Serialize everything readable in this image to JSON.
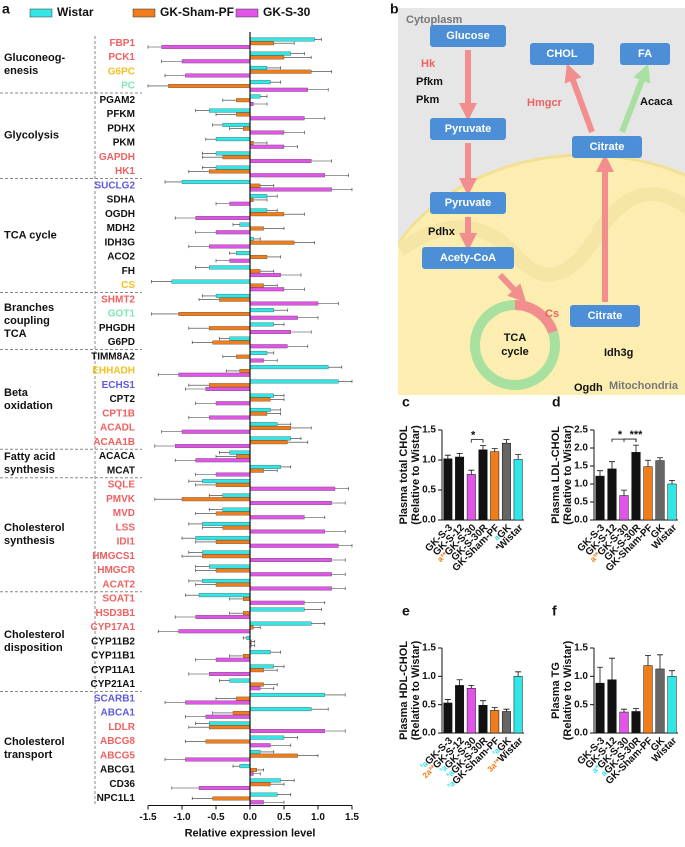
{
  "chart_data": [
    {
      "type": "hbar",
      "label": "a",
      "xlabel": "Relative expression level",
      "xlim": [
        -1.5,
        1.5
      ],
      "xticks": [
        {
          "value": -1.5,
          "label": "-1.5"
        },
        {
          "value": -1.0,
          "label": "-1.0"
        },
        {
          "value": -0.5,
          "label": "-0.5"
        },
        {
          "value": 0,
          "label": "0.0"
        },
        {
          "value": 0.5,
          "label": "0.5"
        },
        {
          "value": 1.0,
          "label": "1.0"
        },
        {
          "value": 1.5,
          "label": "1.5"
        }
      ],
      "groups": [
        {
          "label": [
            "Gluconeog-",
            "enesis"
          ],
          "genes": [
            {
              "name": "FBP1",
              "color": "#f06060"
            },
            {
              "name": "PCK1",
              "color": "#f06060"
            },
            {
              "name": "G6PC",
              "color": "#f0c020"
            },
            {
              "name": "PC",
              "color": "#80e8b0"
            }
          ]
        },
        {
          "label": [
            "Glycolysis"
          ],
          "genes": [
            {
              "name": "PGAM2",
              "color": "#111111"
            },
            {
              "name": "PFKM",
              "color": "#111111"
            },
            {
              "name": "PDHX",
              "color": "#111111"
            },
            {
              "name": "PKM",
              "color": "#111111"
            },
            {
              "name": "GAPDH",
              "color": "#f06060"
            },
            {
              "name": "HK1",
              "color": "#f06060"
            }
          ]
        },
        {
          "label": [
            "TCA cycle"
          ],
          "genes": [
            {
              "name": "SUCLG2",
              "color": "#5b5be0"
            },
            {
              "name": "SDHA",
              "color": "#111111"
            },
            {
              "name": "OGDH",
              "color": "#111111"
            },
            {
              "name": "MDH2",
              "color": "#111111"
            },
            {
              "name": "IDH3G",
              "color": "#111111"
            },
            {
              "name": "ACO2",
              "color": "#111111"
            },
            {
              "name": "FH",
              "color": "#111111"
            },
            {
              "name": "CS",
              "color": "#f0c020"
            }
          ]
        },
        {
          "label": [
            "Branches",
            "coupling",
            "TCA"
          ],
          "genes": [
            {
              "name": "SHMT2",
              "color": "#f06060"
            },
            {
              "name": "GOT1",
              "color": "#80e8b0"
            },
            {
              "name": "PHGDH",
              "color": "#111111"
            },
            {
              "name": "G6PD",
              "color": "#111111"
            }
          ]
        },
        {
          "label": [
            "Beta",
            "oxidation"
          ],
          "genes": [
            {
              "name": "TIMM8A2",
              "color": "#111111"
            },
            {
              "name": "EHHADH",
              "color": "#f0c020"
            },
            {
              "name": "ECHS1",
              "color": "#5b5be0"
            },
            {
              "name": "CPT2",
              "color": "#111111"
            },
            {
              "name": "CPT1B",
              "color": "#f06060"
            },
            {
              "name": "ACADL",
              "color": "#f06060"
            },
            {
              "name": "ACAA1B",
              "color": "#f06060"
            }
          ]
        },
        {
          "label": [
            "Fatty acid",
            "synthesis"
          ],
          "genes": [
            {
              "name": "ACACA",
              "color": "#111111"
            },
            {
              "name": "MCAT",
              "color": "#111111"
            }
          ]
        },
        {
          "label": [
            "Cholesterol",
            "synthesis"
          ],
          "genes": [
            {
              "name": "SQLE",
              "color": "#f06060"
            },
            {
              "name": "PMVK",
              "color": "#f06060"
            },
            {
              "name": "MVD",
              "color": "#f06060"
            },
            {
              "name": "LSS",
              "color": "#f06060"
            },
            {
              "name": "IDI1",
              "color": "#f06060"
            },
            {
              "name": "HMGCS1",
              "color": "#f06060"
            },
            {
              "name": "HMGCR",
              "color": "#f06060"
            },
            {
              "name": "ACAT2",
              "color": "#f06060"
            }
          ]
        },
        {
          "label": [
            "Cholesterol",
            "disposition"
          ],
          "genes": [
            {
              "name": "SOAT1",
              "color": "#f06060"
            },
            {
              "name": "HSD3B1",
              "color": "#f06060"
            },
            {
              "name": "CYP17A1",
              "color": "#f06060"
            },
            {
              "name": "CYP11B2",
              "color": "#111111"
            },
            {
              "name": "CYP11B1",
              "color": "#111111"
            },
            {
              "name": "CYP11A1",
              "color": "#111111"
            },
            {
              "name": "CYP21A1",
              "color": "#111111"
            }
          ]
        },
        {
          "label": [
            "Cholesterol",
            "transport"
          ],
          "genes": [
            {
              "name": "SCARB1",
              "color": "#5b5be0"
            },
            {
              "name": "ABCA1",
              "color": "#5b5be0"
            },
            {
              "name": "LDLR",
              "color": "#f06060"
            },
            {
              "name": "ABCG8",
              "color": "#f06060"
            },
            {
              "name": "ABCG5",
              "color": "#f06060"
            },
            {
              "name": "ABCG1",
              "color": "#111111"
            },
            {
              "name": "CD36",
              "color": "#111111"
            },
            {
              "name": "NPC1L1",
              "color": "#111111"
            }
          ]
        }
      ],
      "series": [
        {
          "name": "Wistar",
          "color": "#33e6e6",
          "values": [
            0.95,
            0.6,
            0.25,
            0.3,
            0.15,
            -0.6,
            -0.4,
            -0.5,
            -0.5,
            -0.5,
            -1.0,
            0.25,
            0.25,
            -0.15,
            0.05,
            -0.2,
            -0.6,
            -1.15,
            -0.5,
            0.35,
            0.35,
            -0.3,
            0.25,
            1.15,
            1.3,
            0.35,
            0.3,
            0.4,
            0.6,
            -0.3,
            0.45,
            -0.7,
            -0.4,
            -0.4,
            -0.7,
            -0.8,
            -0.7,
            -0.6,
            -0.7,
            -0.75,
            0.8,
            0.9,
            -0.05,
            0.3,
            0.35,
            -0.3,
            1.1,
            0.9,
            -0.6,
            0.5,
            0.15,
            -0.15,
            0.45,
            0.4
          ],
          "errors": [
            0.1,
            0.2,
            0.2,
            0.15,
            0.1,
            0.2,
            0.15,
            0.15,
            0.2,
            0.2,
            0.25,
            0.15,
            0.15,
            0.1,
            0.1,
            0.1,
            0.2,
            0.3,
            0.2,
            0.2,
            0.15,
            0.15,
            0.1,
            0.2,
            0.2,
            0.15,
            0.15,
            0.2,
            0.15,
            0.15,
            0.15,
            0.2,
            0.2,
            0.2,
            0.2,
            0.2,
            0.2,
            0.2,
            0.2,
            0.2,
            0.25,
            0.2,
            0.05,
            0.15,
            0.15,
            0.15,
            0.3,
            0.25,
            0.2,
            0.2,
            0.2,
            0.1,
            0.2,
            0.2
          ]
        },
        {
          "name": "GK-Sham-PF",
          "color": "#f07d1a",
          "values": [
            0.35,
            0.5,
            0.9,
            -1.2,
            -0.2,
            -0.2,
            -0.1,
            0.05,
            -0.4,
            -0.6,
            0.15,
            0.05,
            0.5,
            0.2,
            0.65,
            0.25,
            0.15,
            0.2,
            -0.45,
            -1.05,
            -0.6,
            -0.55,
            -0.2,
            -0.15,
            -0.6,
            0.3,
            0.25,
            0.6,
            0.55,
            -0.2,
            0.2,
            -0.5,
            -1.0,
            -0.5,
            -0.4,
            -0.5,
            -0.7,
            -0.5,
            -0.5,
            -0.1,
            -0.1,
            0.05,
            0.02,
            -0.1,
            0.2,
            0.2,
            -0.2,
            -0.25,
            -0.6,
            -0.65,
            0.7,
            0.1,
            0.3,
            -0.55
          ],
          "errors": [
            0.3,
            0.4,
            0.3,
            0.3,
            0.2,
            0.3,
            0.2,
            0.2,
            0.3,
            0.3,
            0.2,
            0.2,
            0.3,
            0.3,
            0.3,
            0.2,
            0.2,
            0.2,
            0.3,
            0.4,
            0.3,
            0.3,
            0.2,
            0.2,
            0.3,
            0.2,
            0.2,
            0.3,
            0.3,
            0.3,
            0.2,
            0.3,
            0.4,
            0.3,
            0.3,
            0.3,
            0.3,
            0.3,
            0.3,
            0.2,
            0.2,
            0.1,
            0.05,
            0.2,
            0.2,
            0.2,
            0.3,
            0.3,
            0.3,
            0.3,
            0.3,
            0.1,
            0.2,
            0.3
          ]
        },
        {
          "name": "GK-S-30",
          "color": "#e055e8",
          "values": [
            -1.3,
            -1.0,
            -0.95,
            0.85,
            0.05,
            0.8,
            0.5,
            0.5,
            0.9,
            1.1,
            1.2,
            -0.3,
            -0.8,
            -0.5,
            -0.6,
            -0.3,
            0.45,
            0.5,
            1.0,
            0.7,
            0.6,
            0.55,
            0.2,
            -1.05,
            -0.65,
            -0.5,
            -0.6,
            -1.0,
            -1.1,
            -0.8,
            -0.5,
            1.25,
            1.2,
            0.8,
            1.1,
            1.3,
            1.2,
            1.2,
            1.2,
            0.8,
            -0.8,
            -1.05,
            0.02,
            -0.5,
            -0.6,
            0.15,
            -0.95,
            -0.65,
            1.1,
            0.3,
            -0.95,
            0.05,
            -0.75,
            0.2
          ],
          "errors": [
            0.2,
            0.3,
            0.3,
            0.3,
            0.2,
            0.3,
            0.3,
            0.2,
            0.3,
            0.35,
            0.3,
            0.2,
            0.3,
            0.3,
            0.3,
            0.2,
            0.3,
            0.3,
            0.3,
            0.3,
            0.3,
            0.3,
            0.2,
            0.3,
            0.3,
            0.3,
            0.3,
            0.3,
            0.3,
            0.3,
            0.3,
            0.2,
            0.2,
            0.3,
            0.3,
            0.2,
            0.2,
            0.2,
            0.2,
            0.3,
            0.3,
            0.3,
            0.05,
            0.3,
            0.3,
            0.2,
            0.3,
            0.3,
            0.3,
            0.3,
            0.3,
            0.1,
            0.4,
            0.3
          ]
        }
      ]
    },
    {
      "type": "bar",
      "label": "c",
      "ylabel": [
        "Plasma total CHOL",
        "(Relative to Wistar)"
      ],
      "categories": [
        "GK-S-3",
        "GK-S-12",
        "GK-S-30",
        "GK-S-30R",
        "GK-Sham-PF",
        "GK",
        "Wistar"
      ],
      "colors": [
        "#111111",
        "#111111",
        "#e055e8",
        "#111111",
        "#f07d1a",
        "#666666",
        "#33e6e6"
      ],
      "values": [
        1.02,
        1.05,
        0.76,
        1.17,
        1.14,
        1.28,
        1.01
      ],
      "errors": [
        0.06,
        0.06,
        0.07,
        0.07,
        0.05,
        0.06,
        0.08
      ],
      "category_marks": [
        null,
        null,
        {
          "text": "a³*",
          "color": "#f07d1a"
        },
        null,
        null,
        {
          "text": "a",
          "color": "#33e6e6"
        },
        {
          "text": "*",
          "color": "#111111"
        }
      ],
      "significance": [
        {
          "from": "GK-S-30",
          "to": "GK-S-30R",
          "label": "*"
        }
      ],
      "ylim": [
        0,
        1.5
      ],
      "yticks": [
        {
          "value": 0,
          "label": "0.0"
        },
        {
          "value": 0.5,
          "label": "0.5"
        },
        {
          "value": 1.0,
          "label": "1.0"
        },
        {
          "value": 1.5,
          "label": "1.5"
        }
      ]
    },
    {
      "type": "bar",
      "label": "d",
      "ylabel": [
        "Plasma LDL-CHOL",
        "(Relative to Wistar)"
      ],
      "categories": [
        "GK-S-3",
        "GK-S-12",
        "GK-S-30",
        "GK-S-30R",
        "GK-Sham-PF",
        "GK",
        "Wistar"
      ],
      "colors": [
        "#111111",
        "#111111",
        "#e055e8",
        "#111111",
        "#f07d1a",
        "#666666",
        "#33e6e6"
      ],
      "values": [
        1.22,
        1.42,
        0.68,
        1.88,
        1.48,
        1.65,
        1.0
      ],
      "errors": [
        0.15,
        0.2,
        0.15,
        0.2,
        0.18,
        0.08,
        0.1
      ],
      "category_marks": [
        null,
        null,
        {
          "text": "a³*",
          "color": "#f07d1a"
        },
        null,
        null,
        null,
        null
      ],
      "significance": [
        {
          "from": "GK-S-12",
          "to": "GK-S-30R",
          "label": "*"
        },
        {
          "from": "GK-S-30",
          "to": "GK-S-30R",
          "label": "***"
        }
      ],
      "ylim": [
        0,
        2.5
      ],
      "yticks": [
        {
          "value": 0,
          "label": "0.0"
        },
        {
          "value": 0.5,
          "label": "0.5"
        },
        {
          "value": 1.0,
          "label": "1.0"
        },
        {
          "value": 1.5,
          "label": "1.5"
        },
        {
          "value": 2.0,
          "label": "2.0"
        },
        {
          "value": 2.5,
          "label": "2.5"
        }
      ]
    },
    {
      "type": "bar",
      "label": "e",
      "ylabel": [
        "Plasma HDL-CHOL",
        "(Relative to Wistar)"
      ],
      "categories": [
        "GK-S-3",
        "GK-S-12",
        "GK-S-30",
        "GK-S-30R",
        "GK-Sham-PF",
        "GK",
        "Wistar"
      ],
      "colors": [
        "#111111",
        "#111111",
        "#e055e8",
        "#111111",
        "#f07d1a",
        "#666666",
        "#33e6e6"
      ],
      "values": [
        0.53,
        0.84,
        0.79,
        0.49,
        0.4,
        0.38,
        1.0
      ],
      "errors": [
        0.06,
        0.1,
        0.05,
        0.08,
        0.05,
        0.04,
        0.08
      ],
      "category_marks": [
        {
          "text": "³a",
          "color": "#33e6e6"
        },
        {
          "text": "2a³*",
          "color": "#f07d1a"
        },
        {
          "text": "³a",
          "color": "#33e6e6"
        },
        {
          "text": "³a",
          "color": "#33e6e6"
        },
        {
          "text": "³a",
          "color": "#33e6e6"
        },
        {
          "text": "³a",
          "color": "#33e6e6"
        },
        {
          "text": "3a³*",
          "color": "#f07d1a"
        }
      ],
      "significance": [],
      "ylim": [
        0,
        1.5
      ],
      "yticks": [
        {
          "value": 0,
          "label": "0.0"
        },
        {
          "value": 0.5,
          "label": "0.5"
        },
        {
          "value": 1.0,
          "label": "1.0"
        },
        {
          "value": 1.5,
          "label": "1.5"
        }
      ]
    },
    {
      "type": "bar",
      "label": "f",
      "ylabel": [
        "Plasma TG",
        "(Relative to Wistar)"
      ],
      "categories": [
        "GK-S-3",
        "GK-S-12",
        "GK-S-30",
        "GK-S-30R",
        "GK-Sham-PF",
        "GK",
        "Wistar"
      ],
      "colors": [
        "#111111",
        "#111111",
        "#e055e8",
        "#111111",
        "#f07d1a",
        "#666666",
        "#33e6e6"
      ],
      "values": [
        0.88,
        0.94,
        0.37,
        0.38,
        1.19,
        1.13,
        1.0
      ],
      "errors": [
        0.28,
        0.38,
        0.05,
        0.05,
        0.18,
        0.25,
        0.1
      ],
      "category_marks": [
        null,
        null,
        {
          "text": "a*",
          "color": "#33e6e6"
        },
        {
          "text": "a",
          "color": "#33e6e6"
        },
        null,
        null,
        null
      ],
      "significance": [],
      "ylim": [
        0,
        1.5
      ],
      "yticks": [
        {
          "value": 0,
          "label": "0.0"
        },
        {
          "value": 0.5,
          "label": "0.5"
        },
        {
          "value": 1.0,
          "label": "1.0"
        },
        {
          "value": 1.5,
          "label": "1.5"
        }
      ]
    }
  ],
  "diagram": {
    "label": "b",
    "regions": [
      "Cytoplasm",
      "Mitochondria"
    ],
    "nodes": [
      "Glucose",
      "Pyruvate",
      "Pyruvate",
      "Acety-CoA",
      "CHOL",
      "FA",
      "Citrate",
      "Citrate"
    ],
    "enzymes": [
      "Hk",
      "Pfkm",
      "Pkm",
      "Pdhx",
      "Hmgcr",
      "Acaca",
      "Cs",
      "Idh3g",
      "Ogdh"
    ],
    "cycle": [
      "TCA",
      "cycle"
    ]
  }
}
